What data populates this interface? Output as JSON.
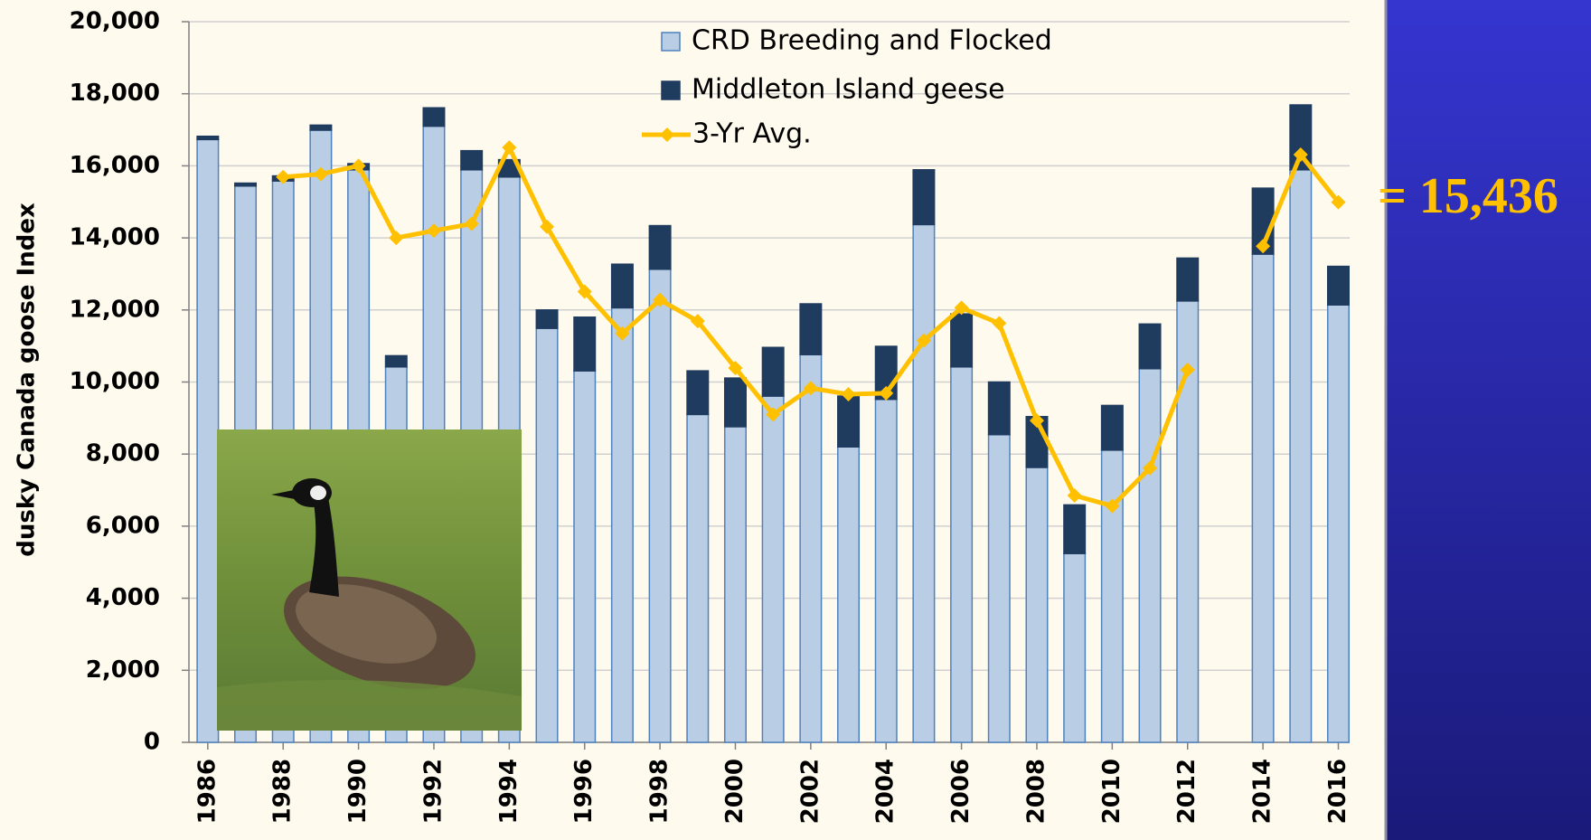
{
  "chart_data": {
    "type": "bar",
    "stacked": true,
    "ylabel": "dusky Canada goose Index",
    "x": [
      1986,
      1987,
      1988,
      1989,
      1990,
      1991,
      1992,
      1993,
      1994,
      1995,
      1996,
      1997,
      1998,
      1999,
      2000,
      2001,
      2002,
      2003,
      2004,
      2005,
      2006,
      2007,
      2008,
      2009,
      2010,
      2011,
      2012,
      2013,
      2014,
      2015,
      2016
    ],
    "xlim": [
      1985.5,
      2016.3
    ],
    "xticks": [
      1986,
      1988,
      1990,
      1992,
      1994,
      1996,
      1998,
      2000,
      2002,
      2004,
      2006,
      2008,
      2010,
      2012,
      2014,
      2016
    ],
    "ylim": [
      0,
      20000
    ],
    "yticks": [
      0,
      {
        "value": 2000,
        "label": "2,000"
      },
      {
        "value": 4000,
        "label": "4,000"
      },
      {
        "value": 6000,
        "label": "6,000"
      },
      {
        "value": 8000,
        "label": "8,000"
      },
      {
        "value": 10000,
        "label": "10,000"
      },
      {
        "value": 12000,
        "label": "12,000"
      },
      {
        "value": 14000,
        "label": "14,000"
      },
      {
        "value": 16000,
        "label": "16,000"
      },
      {
        "value": 18000,
        "label": "18,000"
      },
      {
        "value": 20000,
        "label": "20,000"
      }
    ],
    "grid": true,
    "series": [
      {
        "name": "CRD Breeding and Flocked",
        "type": "bar",
        "color": "#b9cde5",
        "stroke": "#4f81bd",
        "values": [
          16730,
          15440,
          15580,
          16990,
          15890,
          10420,
          17100,
          15890,
          15690,
          11490,
          10310,
          12060,
          13130,
          9100,
          8760,
          9610,
          10760,
          8200,
          9520,
          14370,
          10420,
          8540,
          7630,
          5240,
          8110,
          10370,
          12250,
          null,
          13550,
          15890,
          12140
        ]
      },
      {
        "name": "Middleton Island geese",
        "type": "bar",
        "color": "#1f3b5e",
        "stroke": "#1f3b5e",
        "values": [
          90,
          80,
          140,
          140,
          170,
          310,
          510,
          530,
          480,
          510,
          1490,
          1210,
          1210,
          1210,
          1350,
          1350,
          1410,
          1410,
          1470,
          1520,
          1470,
          1460,
          1410,
          1350,
          1240,
          1240,
          1190,
          null,
          1830,
          1800,
          1070
        ]
      },
      {
        "name": "3-Yr Avg.",
        "type": "line",
        "color": "#ffc000",
        "values": [
          null,
          null,
          15690,
          15770,
          16000,
          14000,
          14200,
          14390,
          16510,
          14310,
          12510,
          11350,
          12280,
          11690,
          10390,
          9100,
          9830,
          9660,
          9690,
          11150,
          12060,
          11630,
          8930,
          6850,
          6560,
          7610,
          10340,
          null,
          13770,
          16310,
          14990
        ]
      }
    ],
    "annotations": [
      {
        "text": "= 15,436",
        "color": "#ffc000"
      }
    ]
  }
}
